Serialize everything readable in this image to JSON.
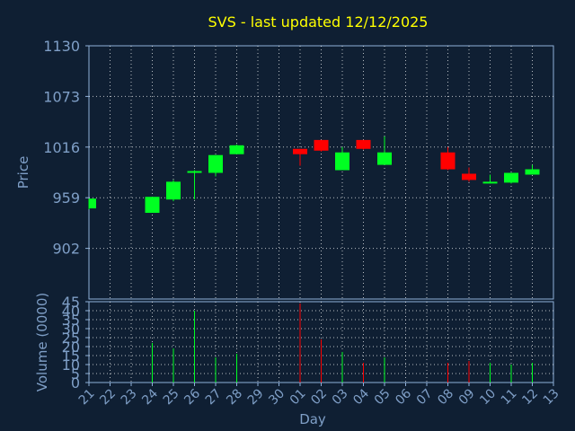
{
  "chart_data": {
    "type": "candlestick",
    "title": "SVS - last updated 12/12/2025",
    "colors": {
      "background": "#0f1f33",
      "plot_background": "#0f1f33",
      "frame": "#8fb0d8",
      "grid": "#ffffff",
      "title": "#ffff00",
      "label": "#7f9fc7",
      "up": "#00ff22",
      "down": "#ff0000"
    },
    "price_panel": {
      "ylabel": "Price",
      "ylim": [
        845,
        1130
      ],
      "yticks": [
        1130,
        1073,
        1016,
        959,
        902
      ]
    },
    "volume_panel": {
      "ylabel": "Volume (0000)",
      "ylim": [
        0,
        45
      ],
      "yticks": [
        45,
        40,
        35,
        30,
        25,
        20,
        15,
        10,
        5,
        0
      ]
    },
    "xlabel": "Day",
    "x_tick_labels": [
      "21",
      "22",
      "23",
      "24",
      "25",
      "26",
      "27",
      "28",
      "29",
      "30",
      "01",
      "02",
      "03",
      "04",
      "05",
      "06",
      "07",
      "08",
      "09",
      "10",
      "11",
      "12",
      "13"
    ],
    "candles": [
      {
        "day": "21",
        "open": 947,
        "high": 958,
        "low": 946,
        "close": 958,
        "volume": 0
      },
      {
        "day": "24",
        "open": 942,
        "high": 960,
        "low": 942,
        "close": 960,
        "volume": 22
      },
      {
        "day": "25",
        "open": 957,
        "high": 979,
        "low": 955,
        "close": 977,
        "volume": 19
      },
      {
        "day": "26",
        "open": 987,
        "high": 990,
        "low": 957,
        "close": 989,
        "volume": 40
      },
      {
        "day": "27",
        "open": 987,
        "high": 1007,
        "low": 983,
        "close": 1007,
        "volume": 14
      },
      {
        "day": "28",
        "open": 1008,
        "high": 1019,
        "low": 1008,
        "close": 1018,
        "volume": 16
      },
      {
        "day": "01",
        "open": 1014,
        "high": 1014,
        "low": 995,
        "close": 1008,
        "volume": 44
      },
      {
        "day": "02",
        "open": 1024,
        "high": 1024,
        "low": 1011,
        "close": 1012,
        "volume": 24
      },
      {
        "day": "03",
        "open": 990,
        "high": 1016,
        "low": 990,
        "close": 1010,
        "volume": 17
      },
      {
        "day": "04",
        "open": 1024,
        "high": 1024,
        "low": 1013,
        "close": 1014,
        "volume": 11
      },
      {
        "day": "05",
        "open": 996,
        "high": 1028,
        "low": 996,
        "close": 1010,
        "volume": 14
      },
      {
        "day": "08",
        "open": 1010,
        "high": 1016,
        "low": 990,
        "close": 991,
        "volume": 11
      },
      {
        "day": "09",
        "open": 986,
        "high": 993,
        "low": 977,
        "close": 979,
        "volume": 12
      },
      {
        "day": "10",
        "open": 977,
        "high": 985,
        "low": 975,
        "close": 977,
        "volume": 11
      },
      {
        "day": "11",
        "open": 976,
        "high": 987,
        "low": 975,
        "close": 987,
        "volume": 10
      },
      {
        "day": "12",
        "open": 985,
        "high": 996,
        "low": 985,
        "close": 991,
        "volume": 11
      }
    ]
  }
}
